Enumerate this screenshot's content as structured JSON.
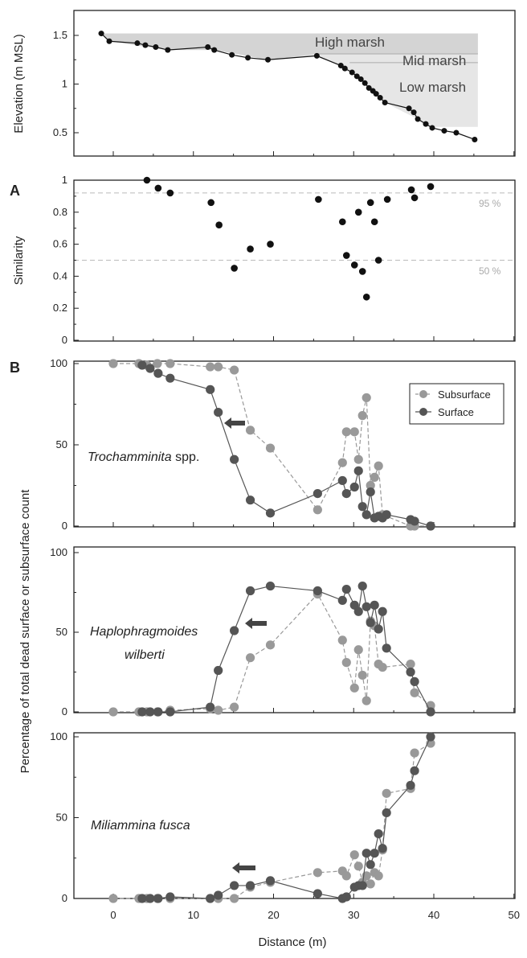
{
  "colors": {
    "surface": "#555555",
    "subsurface": "#999999",
    "marsh_fill": "#d9d9d9",
    "elev_points": "#111111",
    "ref_line": "#bbbbbb"
  },
  "labels": {
    "y_elevation": "Elevation (m MSL)",
    "y_similarity": "Similarity",
    "y_percentage": "Percentage of total dead surface or subsurface count",
    "x_distance": "Distance (m)",
    "panel_a": "A",
    "panel_b": "B",
    "high_marsh": "High marsh",
    "mid_marsh": "Mid marsh",
    "low_marsh": "Low marsh",
    "ref_95": "95 %",
    "ref_50": "50 %",
    "legend_subsurface": "Subsurface",
    "legend_surface": "Surface",
    "species_1_italic": "Trochamminita",
    "species_1_rest": " spp.",
    "species_2_line1": "Haplophragmoides",
    "species_2_line2": "wilberti",
    "species_3": "Miliammina fusca"
  },
  "chart_data": [
    {
      "type": "line",
      "panel": "elevation",
      "ylabel": "Elevation (m MSL)",
      "xlim": [
        -5,
        50
      ],
      "ylim": [
        0.35,
        1.65
      ],
      "yticks": [
        0.5,
        1,
        1.5
      ],
      "ytick_labels": [
        "0.5",
        "1",
        "1.5"
      ],
      "zones": [
        "High marsh",
        "Mid marsh",
        "Low marsh"
      ],
      "series": [
        {
          "x": [
            -1.5,
            -0.5,
            3,
            4,
            5.3,
            6.8,
            11.8,
            12.6,
            14.8,
            16.8,
            19.3,
            25.4,
            28.4,
            28.9,
            29.8,
            30.4,
            30.9,
            31.4,
            31.9,
            32.4,
            32.8,
            33.3,
            33.9,
            36.9,
            37.5,
            38,
            39,
            39.8,
            41.3,
            42.8,
            45.1
          ],
          "y": [
            1.52,
            1.44,
            1.42,
            1.4,
            1.38,
            1.35,
            1.38,
            1.35,
            1.3,
            1.27,
            1.25,
            1.29,
            1.19,
            1.16,
            1.12,
            1.08,
            1.05,
            1.01,
            0.96,
            0.93,
            0.9,
            0.86,
            0.81,
            0.75,
            0.71,
            0.64,
            0.59,
            0.55,
            0.52,
            0.5,
            0.43
          ]
        }
      ]
    },
    {
      "type": "scatter",
      "panel": "A",
      "ylabel": "Similarity",
      "xlim": [
        -5,
        50
      ],
      "ylim": [
        0,
        1.02
      ],
      "yticks": [
        0,
        0.2,
        0.4,
        0.6,
        0.8,
        1
      ],
      "ytick_labels": [
        "0",
        "0.2",
        "0.4",
        "0.6",
        "0.8",
        "1"
      ],
      "reference_lines": [
        0.92,
        0.5
      ],
      "x": [
        4.2,
        5.6,
        7.1,
        12.2,
        13.2,
        15.1,
        17.1,
        19.6,
        25.6,
        28.6,
        29.1,
        30.1,
        30.6,
        31.1,
        31.6,
        32.1,
        32.6,
        33.1,
        34.2,
        37.2,
        37.6,
        39.6
      ],
      "y": [
        1.0,
        0.95,
        0.92,
        0.86,
        0.72,
        0.45,
        0.57,
        0.6,
        0.88,
        0.74,
        0.53,
        0.47,
        0.8,
        0.43,
        0.27,
        0.86,
        0.74,
        0.5,
        0.88,
        0.94,
        0.89,
        0.96
      ]
    },
    {
      "type": "line",
      "panel": "B",
      "title": "Trochamminita spp.",
      "ylim": [
        0,
        100
      ],
      "yticks": [
        0,
        50,
        100
      ],
      "ytick_labels": [
        "0",
        "50",
        "100"
      ],
      "series": [
        {
          "name": "Subsurface",
          "x": [
            0,
            3.2,
            4.2,
            5.5,
            7.1,
            12.1,
            13.1,
            15.1,
            17.1,
            19.6,
            25.5,
            28.6,
            29.1,
            30.1,
            30.6,
            31.1,
            31.6,
            32.1,
            32.6,
            33.1,
            33.6,
            37.1,
            37.6,
            39.6
          ],
          "y": [
            100,
            100,
            99,
            100,
            100,
            98,
            98,
            96,
            59,
            48,
            10,
            39,
            58,
            58,
            41,
            68,
            79,
            25,
            30,
            37,
            7,
            0,
            0,
            0
          ]
        },
        {
          "name": "Surface",
          "x": [
            3.6,
            4.6,
            5.6,
            7.1,
            12.1,
            13.1,
            15.1,
            17.1,
            19.6,
            25.5,
            28.6,
            29.1,
            30.1,
            30.6,
            31.1,
            31.6,
            32.1,
            32.6,
            33.1,
            33.6,
            34.1,
            37.1,
            37.6,
            39.6
          ],
          "y": [
            99,
            97,
            94,
            91,
            84,
            70,
            41,
            16,
            8,
            20,
            28,
            20,
            24,
            34,
            12,
            7,
            21,
            5,
            6,
            5,
            7,
            4,
            3,
            0
          ]
        }
      ]
    },
    {
      "type": "line",
      "panel": "B",
      "title": "Haplophragmoides wilberti",
      "ylim": [
        0,
        100
      ],
      "yticks": [
        0,
        50,
        100
      ],
      "ytick_labels": [
        "0",
        "50",
        "100"
      ],
      "series": [
        {
          "name": "Subsurface",
          "x": [
            0,
            3.2,
            4.2,
            5.5,
            7.1,
            12.1,
            13.1,
            15.1,
            17.1,
            19.6,
            25.5,
            28.6,
            29.1,
            30.1,
            30.6,
            31.1,
            31.6,
            32.1,
            32.6,
            33.1,
            33.6,
            37.1,
            37.6,
            39.6
          ],
          "y": [
            0,
            0,
            0,
            0,
            1,
            2,
            1,
            3,
            34,
            42,
            74,
            45,
            31,
            15,
            39,
            23,
            7,
            57,
            54,
            30,
            28,
            30,
            12,
            4
          ]
        },
        {
          "name": "Surface",
          "x": [
            3.6,
            4.6,
            5.6,
            7.1,
            12.1,
            13.1,
            15.1,
            17.1,
            19.6,
            25.5,
            28.6,
            29.1,
            30.1,
            30.6,
            31.1,
            31.6,
            32.1,
            32.6,
            33.1,
            33.6,
            34.1,
            37.1,
            37.6,
            39.6
          ],
          "y": [
            0,
            0,
            0,
            0,
            3,
            26,
            51,
            76,
            79,
            76,
            70,
            77,
            67,
            63,
            79,
            66,
            56,
            67,
            52,
            63,
            40,
            25,
            19,
            0
          ]
        }
      ]
    },
    {
      "type": "line",
      "panel": "B",
      "title": "Miliammina fusca",
      "ylim": [
        0,
        100
      ],
      "yticks": [
        0,
        50,
        100
      ],
      "ytick_labels": [
        "0",
        "50",
        "100"
      ],
      "xlim": [
        -5,
        50
      ],
      "xticks": [
        0,
        10,
        20,
        30,
        40,
        50
      ],
      "xtick_labels": [
        "0",
        "10",
        "20",
        "30",
        "40",
        "50"
      ],
      "xlabel": "Distance (m)",
      "series": [
        {
          "name": "Subsurface",
          "x": [
            0,
            3.2,
            4.2,
            5.5,
            7.1,
            12.1,
            13.1,
            15.1,
            17.1,
            19.6,
            25.5,
            28.6,
            29.1,
            30.1,
            30.6,
            31.1,
            31.6,
            32.1,
            32.6,
            33.1,
            33.6,
            34.1,
            37.1,
            37.6,
            39.6
          ],
          "y": [
            0,
            0,
            0,
            0,
            0,
            0,
            0,
            0,
            7,
            10,
            16,
            17,
            14,
            27,
            20,
            10,
            14,
            9,
            16,
            14,
            30,
            65,
            68,
            90,
            96
          ]
        },
        {
          "name": "Surface",
          "x": [
            3.6,
            4.6,
            5.6,
            7.1,
            12.1,
            13.1,
            15.1,
            17.1,
            19.6,
            25.5,
            28.6,
            29.1,
            30.1,
            30.6,
            31.1,
            31.6,
            32.1,
            32.6,
            33.1,
            33.6,
            34.1,
            37.1,
            37.6,
            39.6
          ],
          "y": [
            0,
            0,
            0,
            1,
            0,
            2,
            8,
            8,
            11,
            3,
            0,
            1,
            7,
            8,
            8,
            28,
            21,
            28,
            40,
            31,
            53,
            70,
            79,
            100
          ]
        }
      ]
    }
  ]
}
